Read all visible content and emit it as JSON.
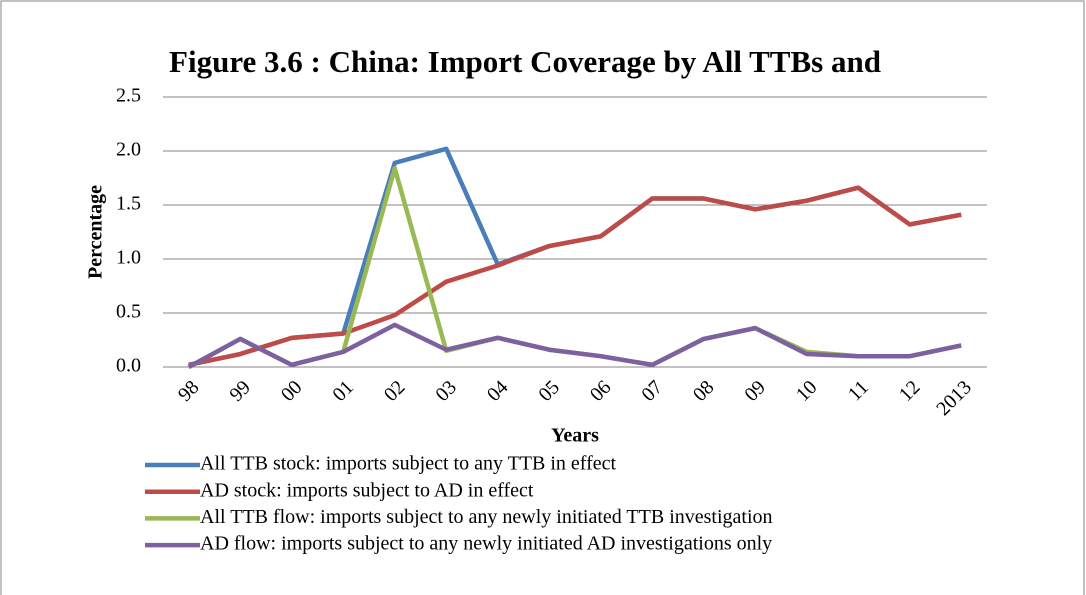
{
  "chart_data": {
    "type": "line",
    "title": "Figure 3.6 : China: Import Coverage by All TTBs and",
    "x_label": "Years",
    "y_label": "Percentage",
    "categories": [
      "98",
      "99",
      "00",
      "01",
      "02",
      "03",
      "04",
      "05",
      "06",
      "07",
      "08",
      "09",
      "10",
      "11",
      "12",
      "2013"
    ],
    "series": [
      {
        "name": "All TTB stock: imports subject to any TTB in effect",
        "color": "#4a7ebb",
        "values": [
          0.02,
          0.12,
          0.27,
          0.31,
          1.89,
          2.02,
          0.95,
          1.12,
          1.21,
          1.56,
          1.56,
          1.46,
          1.54,
          1.66,
          1.32,
          1.41
        ]
      },
      {
        "name": "AD stock: imports subject to AD in effect",
        "color": "#be4b48",
        "values": [
          0.02,
          0.12,
          0.27,
          0.31,
          0.48,
          0.79,
          0.94,
          1.12,
          1.21,
          1.56,
          1.56,
          1.46,
          1.54,
          1.66,
          1.32,
          1.41
        ]
      },
      {
        "name": "All TTB flow: imports subject to any newly initiated TTB investigation",
        "color": "#98b954",
        "values": [
          0.0,
          0.26,
          0.02,
          0.14,
          1.84,
          0.15,
          0.27,
          0.16,
          0.1,
          0.02,
          0.26,
          0.36,
          0.14,
          0.1,
          0.1,
          0.2
        ]
      },
      {
        "name": "AD flow: imports subject to any newly initiated AD investigations only",
        "color": "#7d60a0",
        "values": [
          0.0,
          0.26,
          0.02,
          0.14,
          0.39,
          0.16,
          0.27,
          0.16,
          0.1,
          0.02,
          0.26,
          0.36,
          0.12,
          0.1,
          0.1,
          0.2
        ]
      }
    ],
    "ylim": [
      0,
      2.5
    ],
    "yticks": [
      {
        "value": 0,
        "label": "0.0"
      },
      0.5,
      {
        "value": 1,
        "label": "1.0"
      },
      1.5,
      {
        "value": 2,
        "label": "2.0"
      },
      2.5
    ],
    "grid": true,
    "legend": "bottom"
  }
}
